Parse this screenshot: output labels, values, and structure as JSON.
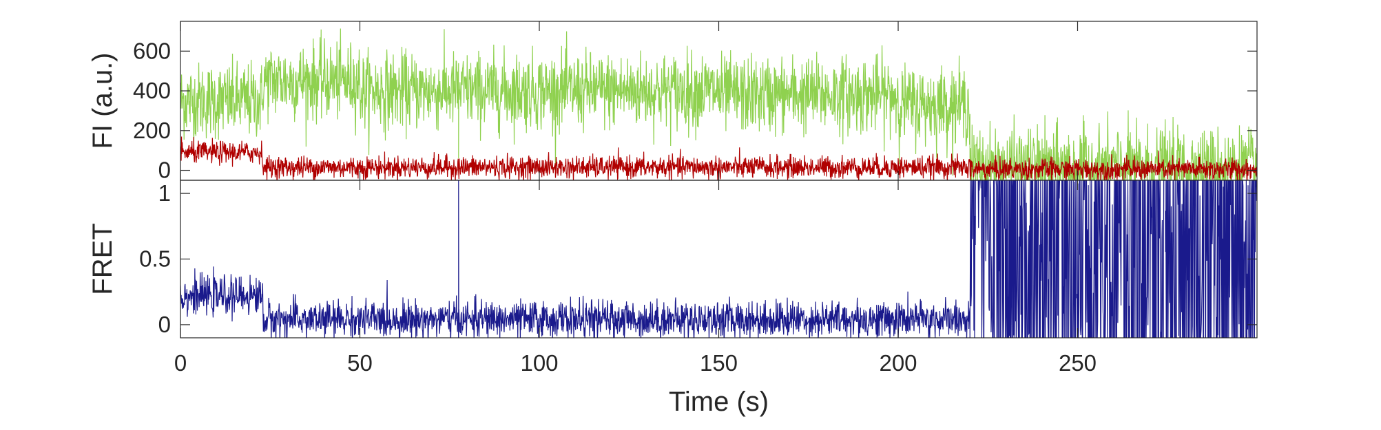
{
  "chart_data": [
    {
      "type": "line",
      "panel": "top",
      "ylabel": "FI (a.u.)",
      "xlabel": "",
      "xlim": [
        0,
        300
      ],
      "ylim": [
        -50,
        750
      ],
      "yticks": [
        0,
        200,
        400,
        600
      ],
      "ytick_labels": [
        "0",
        "200",
        "400",
        "600"
      ],
      "xticks": [
        0,
        50,
        100,
        150,
        200,
        250
      ],
      "grid": false,
      "legend": "none",
      "series": [
        {
          "color": "#8fd14f",
          "noise": 95,
          "segments": [
            {
              "x": [
                0,
                23
              ],
              "mean": 350
            },
            {
              "x": [
                23,
                50
              ],
              "mean": 450
            },
            {
              "x": [
                50,
                150
              ],
              "mean": 400
            },
            {
              "x": [
                150,
                200
              ],
              "mean": 380
            },
            {
              "x": [
                200,
                220
              ],
              "mean": 330
            },
            {
              "x": [
                220,
                300
              ],
              "mean": 20
            }
          ],
          "spikes": [
            {
              "x": 77.5,
              "y": 60
            }
          ]
        },
        {
          "color": "#b00000",
          "noise": 28,
          "segments": [
            {
              "x": [
                0,
                23
              ],
              "mean": 90
            },
            {
              "x": [
                23,
                220
              ],
              "mean": 15
            },
            {
              "x": [
                220,
                300
              ],
              "mean": 5
            }
          ],
          "spikes": []
        }
      ]
    },
    {
      "type": "line",
      "panel": "bottom",
      "ylabel": "FRET",
      "xlabel": "Time (s)",
      "xlim": [
        0,
        300
      ],
      "ylim": [
        -0.1,
        1.1
      ],
      "yticks": [
        0,
        0.5,
        1
      ],
      "ytick_labels": [
        "0",
        "0.5",
        "1"
      ],
      "xticks": [
        0,
        50,
        100,
        150,
        200,
        250
      ],
      "xtick_labels": [
        "0",
        "50",
        "100",
        "150",
        "200",
        "250"
      ],
      "grid": false,
      "legend": "none",
      "series": [
        {
          "color": "#1a1a8c",
          "noise": 0.07,
          "segments": [
            {
              "x": [
                0,
                23
              ],
              "mean": 0.22
            },
            {
              "x": [
                23,
                220
              ],
              "mean": 0.04
            },
            {
              "x": [
                220,
                300
              ],
              "mean": "random"
            }
          ],
          "spikes": [
            {
              "x": 77.5,
              "y": 1.1
            }
          ]
        }
      ]
    }
  ]
}
